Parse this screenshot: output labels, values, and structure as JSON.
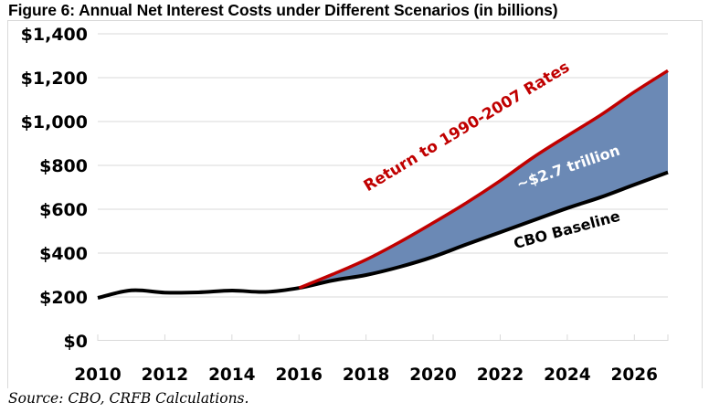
{
  "title": "Figure 6: Annual Net Interest Costs under Different Scenarios (in billions)",
  "source": "Source: CBO, CRFB Calculations.",
  "chart_data": {
    "type": "line",
    "title": "Figure 6: Annual Net Interest Costs under Different Scenarios (in billions)",
    "xlabel": "",
    "ylabel": "",
    "x": [
      2010,
      2011,
      2012,
      2013,
      2014,
      2015,
      2016,
      2017,
      2018,
      2019,
      2020,
      2021,
      2022,
      2023,
      2024,
      2025,
      2026,
      2027
    ],
    "xlim": [
      2010,
      2027
    ],
    "ylim": [
      0,
      1400
    ],
    "x_ticks": [
      2010,
      2012,
      2014,
      2016,
      2018,
      2020,
      2022,
      2024,
      2026
    ],
    "x_tick_labels": [
      "2010",
      "2012",
      "2014",
      "2016",
      "2018",
      "2020",
      "2022",
      "2024",
      "2026"
    ],
    "y_ticks": [
      0,
      200,
      400,
      600,
      800,
      1000,
      1200,
      1400
    ],
    "y_tick_labels": [
      "$0",
      "$200",
      "$400",
      "$600",
      "$800",
      "$1,000",
      "$1,200",
      "$1,400"
    ],
    "grid": "horizontal",
    "legend": "none",
    "series": [
      {
        "name": "CBO Baseline",
        "color": "#000000",
        "x": [
          2010,
          2011,
          2012,
          2013,
          2014,
          2015,
          2016,
          2017,
          2018,
          2019,
          2020,
          2021,
          2022,
          2023,
          2024,
          2025,
          2026,
          2027
        ],
        "values": [
          196,
          230,
          220,
          221,
          229,
          223,
          241,
          275,
          300,
          337,
          383,
          440,
          495,
          550,
          605,
          655,
          712,
          768
        ]
      },
      {
        "name": "Return to 1990-2007 Rates",
        "color": "#C00000",
        "x": [
          2016,
          2017,
          2018,
          2019,
          2020,
          2021,
          2022,
          2023,
          2024,
          2025,
          2026,
          2027
        ],
        "values": [
          241,
          303,
          370,
          450,
          538,
          630,
          730,
          838,
          935,
          1030,
          1135,
          1232
        ]
      }
    ],
    "fill_between": {
      "series": [
        "CBO Baseline",
        "Return to 1990-2007 Rates"
      ],
      "color": "#6B89B5",
      "label": "~$2.7 trillion"
    },
    "annotations": [
      {
        "text": "Return to 1990-2007 Rates",
        "color": "#C00000",
        "anchor_x": 2018.05,
        "anchor_y": 680,
        "angle": -31
      },
      {
        "text": "~$2.7 trillion",
        "color": "#ffffff",
        "anchor_x": 2022.55,
        "anchor_y": 690,
        "angle": -19
      },
      {
        "text": "CBO Baseline",
        "color": "#000000",
        "anchor_x": 2022.45,
        "anchor_y": 420,
        "angle": -15
      }
    ]
  }
}
